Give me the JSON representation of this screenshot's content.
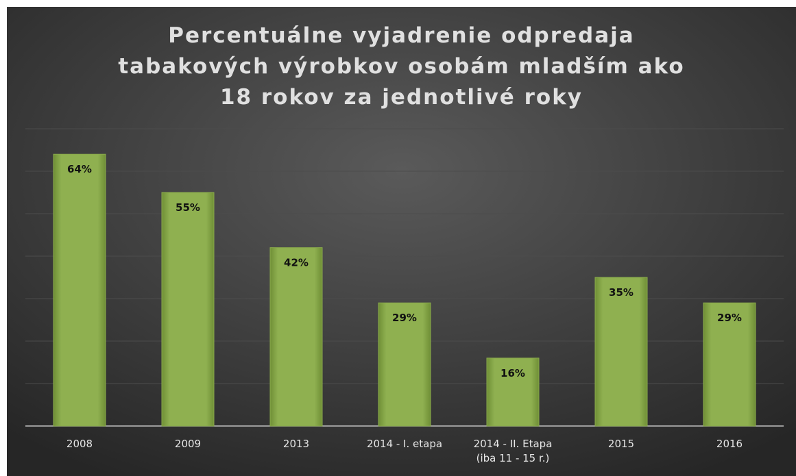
{
  "chart_data": {
    "type": "bar",
    "title": "Percentuálne vyjadrenie odpredaja\ntabakových výrobkov osobám mladším ako\n18 rokov za jednotlivé roky",
    "categories": [
      "2008",
      "2009",
      "2013",
      "2014 - I. etapa",
      "2014 - II. Etapa\n(iba 11 - 15 r.)",
      "2015",
      "2016"
    ],
    "values": [
      64,
      55,
      42,
      29,
      16,
      35,
      29
    ],
    "value_labels": [
      "64%",
      "55%",
      "42%",
      "29%",
      "16%",
      "35%",
      "29%"
    ],
    "color": "#8aab4b",
    "ylim": [
      0,
      70
    ],
    "yticks": [
      0,
      10,
      20,
      30,
      40,
      50,
      60,
      70
    ],
    "grid": true
  }
}
